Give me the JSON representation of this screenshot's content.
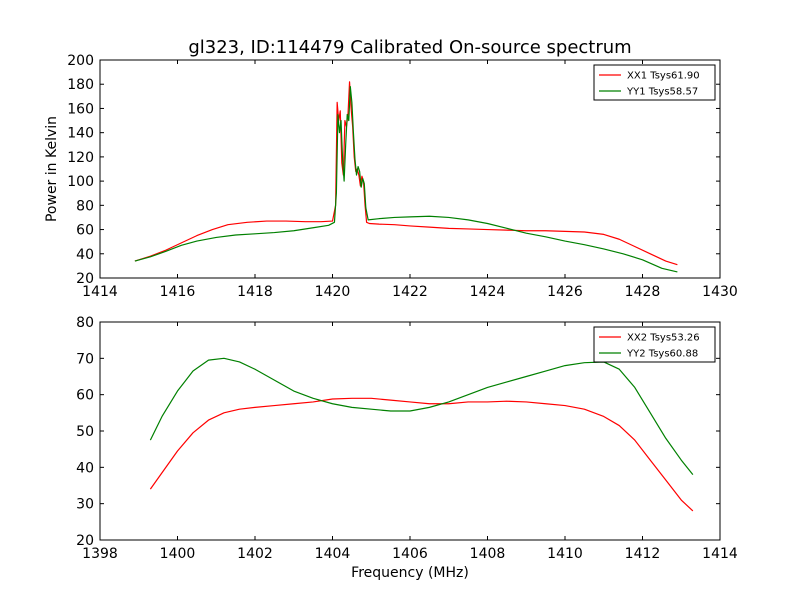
{
  "figure": {
    "title": "gl323, ID:114479 Calibrated On-source spectrum",
    "xlabel": "Frequency (MHz)"
  },
  "chart_data": [
    {
      "type": "line",
      "title": "gl323, ID:114479 Calibrated On-source spectrum",
      "xlabel": "",
      "ylabel": "Power in Kelvin",
      "xlim": [
        1414,
        1430
      ],
      "ylim": [
        20,
        200
      ],
      "xticks": [
        1414,
        1416,
        1418,
        1420,
        1422,
        1424,
        1426,
        1428,
        1430
      ],
      "yticks": [
        20,
        40,
        60,
        80,
        100,
        120,
        140,
        160,
        180,
        200
      ],
      "grid": false,
      "legend": "top-right",
      "series": [
        {
          "name": "XX1 Tsys61.90",
          "color": "#ff0000",
          "x": [
            1414.9,
            1415.3,
            1415.7,
            1416.1,
            1416.5,
            1416.9,
            1417.3,
            1417.8,
            1418.3,
            1418.8,
            1419.3,
            1419.7,
            1420.0,
            1420.08,
            1420.12,
            1420.16,
            1420.2,
            1420.24,
            1420.28,
            1420.32,
            1420.36,
            1420.4,
            1420.44,
            1420.48,
            1420.52,
            1420.56,
            1420.6,
            1420.64,
            1420.68,
            1420.72,
            1420.76,
            1420.8,
            1420.84,
            1420.88,
            1420.95,
            1421.2,
            1421.6,
            1422.0,
            1422.5,
            1423.0,
            1423.5,
            1424.0,
            1424.5,
            1425.0,
            1425.5,
            1426.0,
            1426.5,
            1427.0,
            1427.4,
            1427.8,
            1428.2,
            1428.6,
            1428.9
          ],
          "y": [
            34,
            38,
            43,
            49,
            55,
            60,
            64,
            66,
            67,
            67,
            66.5,
            66.5,
            67,
            80,
            165,
            150,
            158,
            115,
            105,
            150,
            145,
            155,
            182,
            160,
            145,
            120,
            108,
            110,
            105,
            96,
            104,
            100,
            80,
            66,
            65,
            64.5,
            64,
            63,
            62,
            61,
            60.5,
            60,
            59.5,
            59,
            59,
            58.5,
            58,
            56,
            52,
            46,
            40,
            34,
            31
          ]
        },
        {
          "name": "YY1 Tsys58.57",
          "color": "#008000",
          "x": [
            1414.9,
            1415.3,
            1415.7,
            1416.1,
            1416.5,
            1417.0,
            1417.5,
            1418.0,
            1418.5,
            1419.0,
            1419.5,
            1419.9,
            1420.05,
            1420.1,
            1420.14,
            1420.18,
            1420.22,
            1420.26,
            1420.3,
            1420.34,
            1420.38,
            1420.42,
            1420.46,
            1420.5,
            1420.54,
            1420.58,
            1420.62,
            1420.66,
            1420.7,
            1420.74,
            1420.78,
            1420.82,
            1420.86,
            1420.92,
            1421.2,
            1421.6,
            1422.0,
            1422.5,
            1423.0,
            1423.5,
            1424.0,
            1424.5,
            1425.0,
            1425.5,
            1426.0,
            1426.5,
            1427.0,
            1427.5,
            1428.0,
            1428.5,
            1428.9
          ],
          "y": [
            34,
            37.5,
            42,
            47,
            50.5,
            53.5,
            55.5,
            56.5,
            57.5,
            59,
            61.5,
            63.5,
            66,
            90,
            155,
            140,
            150,
            118,
            100,
            130,
            155,
            150,
            178,
            165,
            140,
            118,
            105,
            112,
            108,
            95,
            102,
            98,
            78,
            68,
            69,
            70,
            70.5,
            71,
            70,
            68,
            65,
            61,
            57,
            54,
            50.5,
            47.5,
            44,
            40,
            35,
            28,
            25
          ]
        }
      ]
    },
    {
      "type": "line",
      "title": "",
      "xlabel": "Frequency (MHz)",
      "ylabel": "",
      "xlim": [
        1398,
        1414
      ],
      "ylim": [
        20,
        80
      ],
      "xticks": [
        1398,
        1400,
        1402,
        1404,
        1406,
        1408,
        1410,
        1412,
        1414
      ],
      "yticks": [
        20,
        30,
        40,
        50,
        60,
        70,
        80
      ],
      "grid": false,
      "legend": "top-right",
      "series": [
        {
          "name": "XX2 Tsys53.26",
          "color": "#ff0000",
          "x": [
            1399.3,
            1399.6,
            1400.0,
            1400.4,
            1400.8,
            1401.2,
            1401.6,
            1402.0,
            1402.5,
            1403.0,
            1403.5,
            1404.0,
            1404.5,
            1405.0,
            1405.5,
            1406.0,
            1406.5,
            1407.0,
            1407.5,
            1408.0,
            1408.5,
            1409.0,
            1409.5,
            1410.0,
            1410.5,
            1411.0,
            1411.4,
            1411.8,
            1412.2,
            1412.6,
            1413.0,
            1413.3
          ],
          "y": [
            34,
            38.5,
            44.5,
            49.5,
            53,
            55,
            56,
            56.5,
            57,
            57.5,
            58,
            58.8,
            59,
            59,
            58.5,
            58,
            57.5,
            57.5,
            58,
            58,
            58.2,
            58,
            57.5,
            57,
            56,
            54,
            51.5,
            47.5,
            42,
            36.5,
            31,
            28
          ]
        },
        {
          "name": "YY2 Tsys60.88",
          "color": "#008000",
          "x": [
            1399.3,
            1399.6,
            1400.0,
            1400.4,
            1400.8,
            1401.2,
            1401.6,
            1402.0,
            1402.5,
            1403.0,
            1403.5,
            1404.0,
            1404.5,
            1405.0,
            1405.5,
            1406.0,
            1406.5,
            1407.0,
            1407.5,
            1408.0,
            1408.5,
            1409.0,
            1409.5,
            1410.0,
            1410.5,
            1411.0,
            1411.4,
            1411.8,
            1412.2,
            1412.6,
            1413.0,
            1413.3
          ],
          "y": [
            47.5,
            54,
            61,
            66.5,
            69.5,
            70,
            69,
            67,
            64,
            61,
            59,
            57.5,
            56.5,
            56,
            55.5,
            55.5,
            56.5,
            58,
            60,
            62,
            63.5,
            65,
            66.5,
            68,
            68.8,
            69,
            67,
            62,
            55,
            48,
            42,
            38
          ]
        }
      ]
    }
  ]
}
